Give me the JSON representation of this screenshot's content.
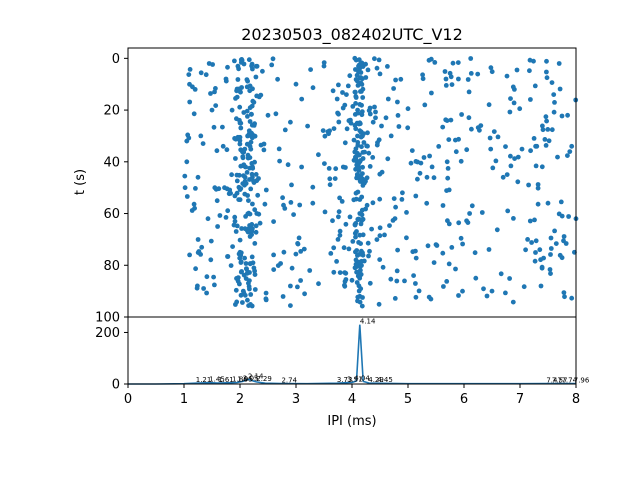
{
  "chart_data": [
    {
      "type": "scatter",
      "title": "20230503_082402UTC_V12",
      "xlabel": "",
      "ylabel": "t (s)",
      "xlim": [
        0,
        8
      ],
      "ylim": [
        100,
        -4
      ],
      "y_inverted": true,
      "yticks": [
        "0",
        "20",
        "40",
        "60",
        "80",
        "100"
      ],
      "color": "#1f77b4",
      "description_of_points": "Dense raster of IPI events between ~1.0 and 8.0 ms over t = 0–96 s, with concentrated vertical bands near 1.9–2.3 ms and 4.14 ms",
      "points_sample": [
        [
          1.05,
          32
        ],
        [
          1.05,
          40
        ],
        [
          1.1,
          76
        ],
        [
          1.2,
          12
        ],
        [
          1.3,
          30
        ],
        [
          1.35,
          89
        ],
        [
          1.45,
          2
        ],
        [
          1.5,
          20
        ],
        [
          1.55,
          50
        ],
        [
          1.6,
          65
        ],
        [
          1.7,
          34
        ],
        [
          1.75,
          8
        ],
        [
          1.85,
          45
        ],
        [
          1.9,
          1
        ],
        [
          1.95,
          15
        ],
        [
          2.0,
          25
        ],
        [
          2.05,
          38
        ],
        [
          2.1,
          42
        ],
        [
          2.15,
          55
        ],
        [
          2.2,
          30
        ],
        [
          2.25,
          48
        ],
        [
          2.3,
          60
        ],
        [
          2.4,
          5
        ],
        [
          2.5,
          22
        ],
        [
          2.6,
          76
        ],
        [
          2.7,
          35
        ],
        [
          2.8,
          58
        ],
        [
          2.9,
          88
        ],
        [
          3.0,
          10
        ],
        [
          3.1,
          42
        ],
        [
          3.3,
          56
        ],
        [
          3.5,
          3
        ],
        [
          3.6,
          28
        ],
        [
          3.75,
          70
        ],
        [
          3.9,
          14
        ],
        [
          4.05,
          0
        ],
        [
          4.1,
          20
        ],
        [
          4.14,
          40
        ],
        [
          4.14,
          60
        ],
        [
          4.14,
          80
        ],
        [
          4.14,
          92
        ],
        [
          4.2,
          48
        ],
        [
          4.35,
          66
        ],
        [
          4.5,
          6
        ],
        [
          4.7,
          30
        ],
        [
          4.9,
          52
        ],
        [
          5.1,
          84
        ],
        [
          5.3,
          18
        ],
        [
          5.5,
          72
        ],
        [
          5.7,
          40
        ],
        [
          5.9,
          8
        ],
        [
          6.1,
          60
        ],
        [
          6.3,
          26
        ],
        [
          6.5,
          90
        ],
        [
          6.7,
          46
        ],
        [
          6.9,
          12
        ],
        [
          7.1,
          74
        ],
        [
          7.3,
          34
        ],
        [
          7.5,
          56
        ],
        [
          7.7,
          2
        ],
        [
          7.85,
          22
        ],
        [
          8.0,
          62
        ]
      ]
    },
    {
      "type": "line",
      "xlabel": "IPI (ms)",
      "ylabel": "",
      "xlim": [
        0,
        8
      ],
      "ylim": [
        0,
        260
      ],
      "xticks": [
        "0",
        "1",
        "2",
        "3",
        "4",
        "5",
        "6",
        "7",
        "8"
      ],
      "yticks": [
        "0",
        "200"
      ],
      "color": "#1f77b4",
      "x": [
        0,
        0.5,
        1.0,
        1.2,
        1.45,
        1.6,
        1.85,
        1.95,
        2.05,
        2.15,
        2.29,
        2.45,
        2.74,
        3.2,
        3.73,
        3.9,
        4.0,
        4.08,
        4.14,
        4.2,
        4.3,
        4.45,
        5.0,
        5.5,
        6.0,
        6.5,
        7.0,
        7.47,
        7.57,
        7.74,
        7.96,
        8.0
      ],
      "y": [
        0,
        0,
        1,
        3,
        5,
        4,
        5,
        6,
        10,
        18,
        8,
        3,
        2,
        1,
        3,
        5,
        6,
        12,
        230,
        10,
        4,
        3,
        1,
        1,
        1,
        1,
        1,
        2,
        2,
        2,
        2,
        1
      ],
      "annotations": [
        {
          "text": "1.21",
          "x": 1.21
        },
        {
          "text": "1.45",
          "x": 1.45
        },
        {
          "text": "1.61",
          "x": 1.61
        },
        {
          "text": "1.86",
          "x": 1.86
        },
        {
          "text": "1.95",
          "x": 1.95
        },
        {
          "text": "2.05",
          "x": 2.05
        },
        {
          "text": "2.14",
          "x": 2.14
        },
        {
          "text": "2.29",
          "x": 2.29
        },
        {
          "text": "2.74",
          "x": 2.74
        },
        {
          "text": "3.73",
          "x": 3.73
        },
        {
          "text": "3.91",
          "x": 3.91
        },
        {
          "text": "4.04",
          "x": 4.04
        },
        {
          "text": "4.14",
          "x": 4.14
        },
        {
          "text": "4.29",
          "x": 4.29
        },
        {
          "text": "4.45",
          "x": 4.45
        },
        {
          "text": "7.47",
          "x": 7.47
        },
        {
          "text": "7.57",
          "x": 7.57
        },
        {
          "text": "7.74",
          "x": 7.74
        },
        {
          "text": "7.96",
          "x": 7.96
        }
      ]
    }
  ]
}
